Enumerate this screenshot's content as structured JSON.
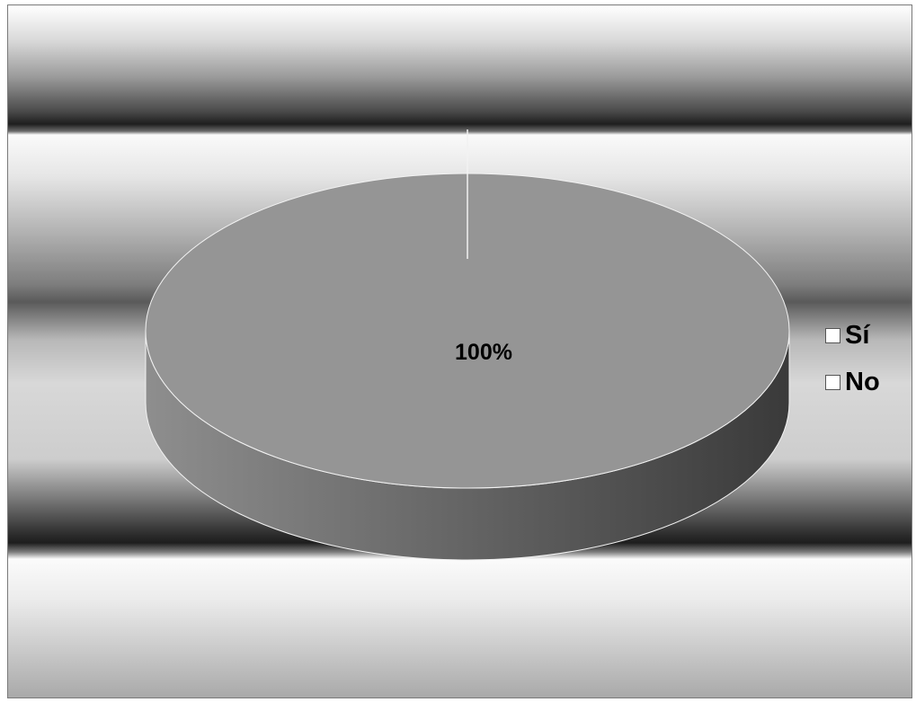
{
  "chart_data": {
    "type": "pie",
    "style": "3d",
    "categories": [
      "Sí",
      "No"
    ],
    "values": [
      100,
      0
    ],
    "data_labels": [
      "100%",
      ""
    ],
    "legend_position": "right",
    "colors": {
      "slice_top": "#959595",
      "slice_side_light": "#8e8e8e",
      "slice_side_dark": "#3a3a3a",
      "slice_edge": "#f2f2f2",
      "legend_swatch": "#ffffff"
    }
  }
}
